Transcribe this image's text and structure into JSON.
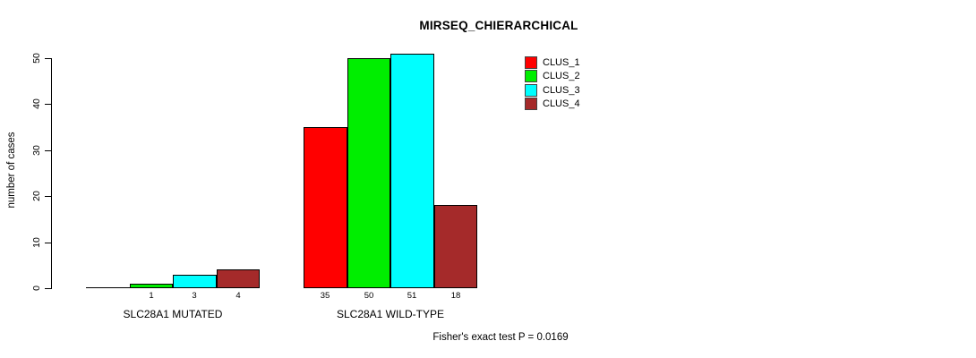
{
  "title": "MIRSEQ_CHIERARCHICAL",
  "y_axis": {
    "label": "number of cases",
    "ticks": [
      0,
      10,
      20,
      30,
      40,
      50
    ]
  },
  "legend": {
    "items": [
      {
        "label": "CLUS_1",
        "color": "#FF0000"
      },
      {
        "label": "CLUS_2",
        "color": "#00EE00"
      },
      {
        "label": "CLUS_3",
        "color": "#00FFFF"
      },
      {
        "label": "CLUS_4",
        "color": "#A52A2A"
      }
    ]
  },
  "footer": "Fisher's exact test P = 0.0169",
  "chart_data": {
    "type": "bar",
    "title": "MIRSEQ_CHIERARCHICAL",
    "ylabel": "number of cases",
    "ylim": [
      0,
      50
    ],
    "yticks": [
      0,
      10,
      20,
      30,
      40,
      50
    ],
    "grid": false,
    "legend_position": "top-right-inside",
    "categories": [
      "SLC28A1 MUTATED",
      "SLC28A1 WILD-TYPE"
    ],
    "series": [
      {
        "name": "CLUS_1",
        "color": "#FF0000",
        "values": [
          0,
          35
        ]
      },
      {
        "name": "CLUS_2",
        "color": "#00EE00",
        "values": [
          1,
          50
        ]
      },
      {
        "name": "CLUS_3",
        "color": "#00FFFF",
        "values": [
          3,
          51
        ]
      },
      {
        "name": "CLUS_4",
        "color": "#A52A2A",
        "values": [
          4,
          18
        ]
      }
    ],
    "bar_labels": [
      [
        "",
        "1",
        "3",
        "4"
      ],
      [
        "35",
        "50",
        "51",
        "18"
      ]
    ],
    "annotation": "Fisher's exact test P = 0.0169"
  }
}
